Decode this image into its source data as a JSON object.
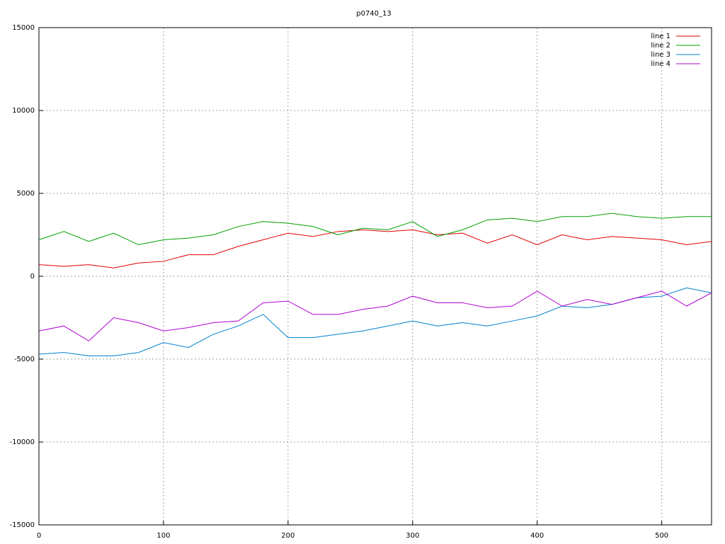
{
  "chart_data": {
    "type": "line",
    "title": "p0740_13",
    "x": [
      0,
      20,
      40,
      60,
      80,
      100,
      120,
      140,
      160,
      180,
      200,
      220,
      240,
      260,
      280,
      300,
      320,
      340,
      360,
      380,
      400,
      420,
      440,
      460,
      480,
      500,
      520,
      540
    ],
    "xlim": [
      0,
      540
    ],
    "xticks": [
      0,
      100,
      200,
      300,
      400,
      500
    ],
    "ylim": [
      -15000,
      15000
    ],
    "yticks": [
      -15000,
      -10000,
      -5000,
      0,
      5000,
      10000,
      15000
    ],
    "grid": true,
    "legend": "top-right",
    "series": [
      {
        "name": "line 1",
        "color": "#e00000",
        "values": [
          700,
          600,
          700,
          500,
          800,
          900,
          1300,
          1300,
          1800,
          2200,
          2600,
          2400,
          2700,
          2800,
          2700,
          2800,
          2500,
          2600,
          2000,
          2500,
          1900,
          2500,
          2200,
          2400,
          2300,
          2200,
          1900,
          2100
        ]
      },
      {
        "name": "line 2",
        "color": "#00a000",
        "values": [
          2200,
          2700,
          2100,
          2600,
          1900,
          2200,
          2300,
          2500,
          3000,
          3300,
          3200,
          3000,
          2500,
          2900,
          2800,
          3300,
          2400,
          2800,
          3400,
          3500,
          3300,
          3600,
          3600,
          3800,
          3600,
          3500,
          3600,
          3600
        ]
      },
      {
        "name": "line 3",
        "color": "#0080d0",
        "values": [
          -4700,
          -4600,
          -4800,
          -4800,
          -4600,
          -4000,
          -4300,
          -3500,
          -3000,
          -2300,
          -3700,
          -3700,
          -3500,
          -3300,
          -3000,
          -2700,
          -3000,
          -2800,
          -3000,
          -2700,
          -2400,
          -1800,
          -1900,
          -1700,
          -1300,
          -1200,
          -700,
          -1000
        ]
      },
      {
        "name": "line 4",
        "color": "#b000d0",
        "values": [
          -3300,
          -3000,
          -3900,
          -2500,
          -2800,
          -3300,
          -3100,
          -2800,
          -2700,
          -1600,
          -1500,
          -2300,
          -2300,
          -2000,
          -1800,
          -1200,
          -1600,
          -1600,
          -1900,
          -1800,
          -900,
          -1800,
          -1400,
          -1700,
          -1300,
          -900,
          -1800,
          -1000
        ]
      }
    ]
  }
}
